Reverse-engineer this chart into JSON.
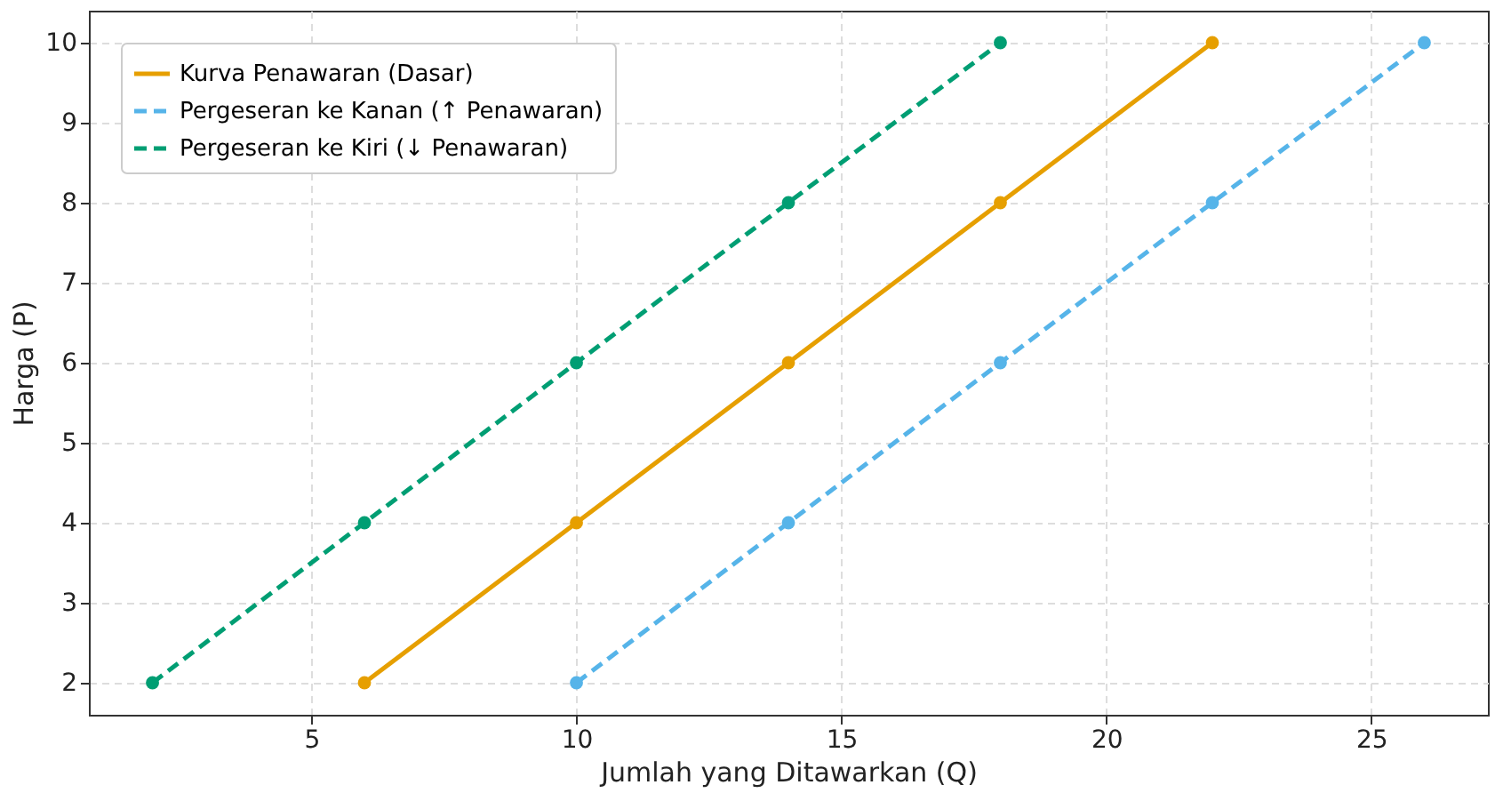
{
  "chart_data": {
    "type": "line",
    "xlabel": "Jumlah yang Ditawarkan (Q)",
    "ylabel": "Harga (P)",
    "xlim": [
      0.8,
      27.2
    ],
    "ylim": [
      1.6,
      10.4
    ],
    "xticks": [
      5,
      10,
      15,
      20,
      25
    ],
    "yticks": [
      2,
      3,
      4,
      5,
      6,
      7,
      8,
      9,
      10
    ],
    "grid": true,
    "legend": "top left",
    "marker": "circle",
    "series": [
      {
        "name": "Kurva Penawaran (Dasar)",
        "color": "#e69f00",
        "line_style": "solid",
        "x": [
          6,
          10,
          14,
          18,
          22
        ],
        "values": [
          2,
          4,
          6,
          8,
          10
        ]
      },
      {
        "name": "Pergeseran ke Kanan (↑ Penawaran)",
        "color": "#56b4e9",
        "line_style": "dashed",
        "x": [
          10,
          14,
          18,
          22,
          26
        ],
        "values": [
          2,
          4,
          6,
          8,
          10
        ]
      },
      {
        "name": "Pergeseran ke Kiri (↓ Penawaran)",
        "color": "#009e73",
        "line_style": "dashed",
        "x": [
          2,
          6,
          10,
          14,
          18
        ],
        "values": [
          2,
          4,
          6,
          8,
          10
        ]
      }
    ]
  }
}
